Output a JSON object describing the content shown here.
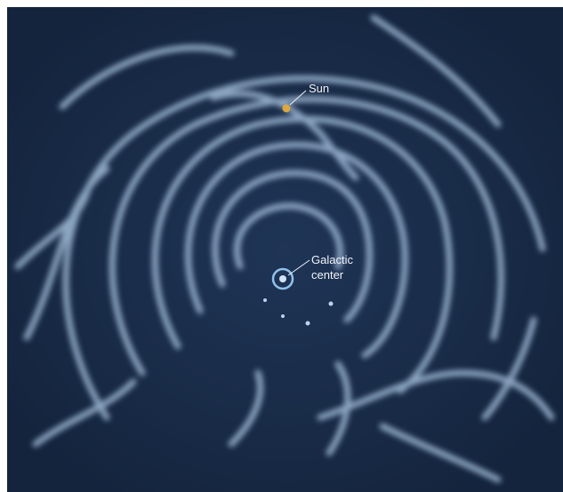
{
  "labels": {
    "sun": "Sun",
    "galactic_center": [
      "Galactic",
      "center"
    ]
  }
}
